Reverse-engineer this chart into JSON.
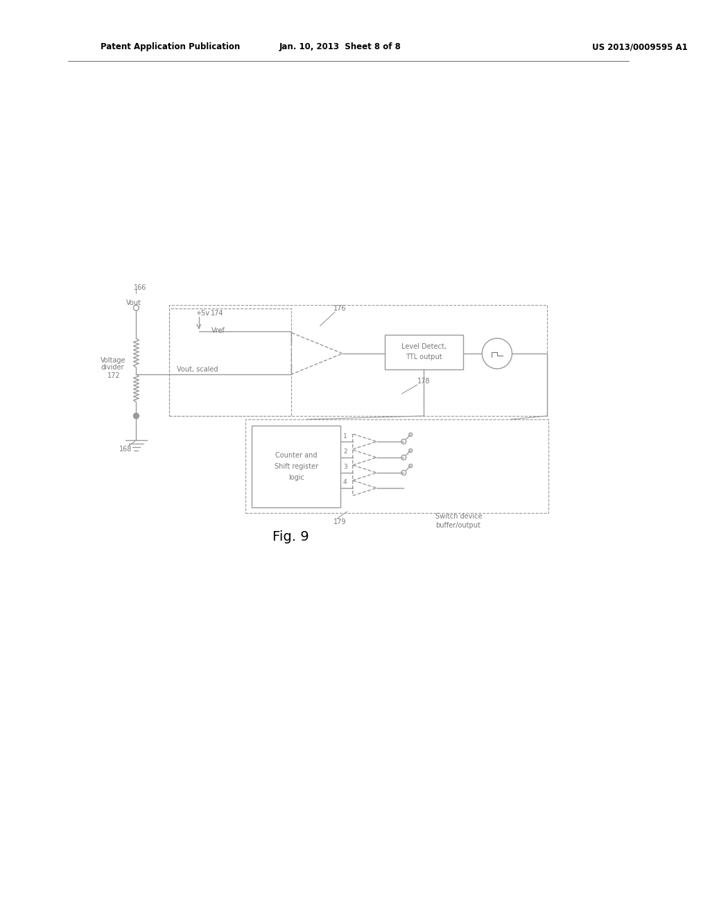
{
  "bg_color": "#ffffff",
  "header_left": "Patent Application Publication",
  "header_center": "Jan. 10, 2013  Sheet 8 of 8",
  "header_right": "US 2013/0009595 A1",
  "fig_label": "Fig. 9",
  "lc": "#999999",
  "tc": "#777777",
  "lc_dark": "#555555",
  "tc_dark": "#444444"
}
